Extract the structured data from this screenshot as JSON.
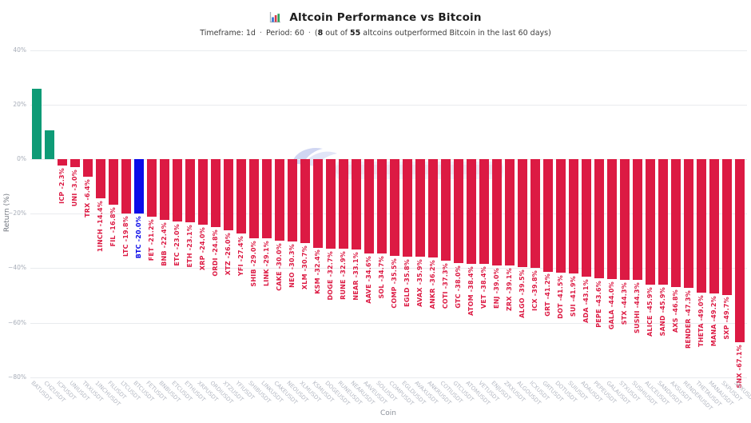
{
  "header": {
    "title": "Altcoin Performance vs Bitcoin",
    "icon": "bar-chart-icon",
    "subtitle": {
      "timeframe": "Timeframe: 1d",
      "separator": "·",
      "period": "Period: 60",
      "stat_open": "(",
      "stat_count": "8",
      "stat_mid": " out of ",
      "stat_total": "55",
      "stat_rest": " altcoins outperformed Bitcoin in the last 60 days)"
    }
  },
  "colors": {
    "green": "#0E9B76",
    "red": "#DC1A43",
    "blue": "#0B0BE8",
    "grid": "#E9EBEE",
    "ytick": "#A7ADB8",
    "xtick": "#B5B9C3",
    "watermark": "#AAB4E8"
  },
  "chart_data": {
    "type": "bar",
    "title": "Altcoin Performance vs Bitcoin",
    "xlabel": "Coin",
    "ylabel": "Return (%)",
    "ylim": [
      -80,
      40
    ],
    "grid": true,
    "legend_position": "none",
    "yticks": [
      {
        "value": 40,
        "label": "40%"
      },
      {
        "value": 20,
        "label": "20%"
      },
      {
        "value": 0,
        "label": "0%"
      },
      {
        "value": -20,
        "label": "−20%"
      },
      {
        "value": -40,
        "label": "−40%"
      },
      {
        "value": -60,
        "label": "−60%"
      },
      {
        "value": -80,
        "label": "−80%"
      }
    ],
    "bars": [
      {
        "symbol": "BAT",
        "tick": "BATUSDT",
        "value": 25.9,
        "label": "BAT 25.9%",
        "color": "green"
      },
      {
        "symbol": "CHZ",
        "tick": "CHZUSDT",
        "value": 10.5,
        "label": "CHZ 10.5%",
        "color": "green"
      },
      {
        "symbol": "ICP",
        "tick": "ICPUSDT",
        "value": -2.3,
        "label": "ICP -2.3%",
        "color": "red"
      },
      {
        "symbol": "UNI",
        "tick": "UNIUSDT",
        "value": -3.0,
        "label": "UNI -3.0%",
        "color": "red"
      },
      {
        "symbol": "TRX",
        "tick": "TRXUSDT",
        "value": -6.4,
        "label": "TRX -6.4%",
        "color": "red"
      },
      {
        "symbol": "1INCH",
        "tick": "1INCHUSDT",
        "value": -14.4,
        "label": "1INCH -14.4%",
        "color": "red"
      },
      {
        "symbol": "FIL",
        "tick": "FILUSDT",
        "value": -16.8,
        "label": "FIL -16.8%",
        "color": "red"
      },
      {
        "symbol": "LTC",
        "tick": "LTCUSDT",
        "value": -19.8,
        "label": "LTC -19.8%",
        "color": "red"
      },
      {
        "symbol": "BTC",
        "tick": "BTCUSDT",
        "value": -20.0,
        "label": "BTC -20.0%",
        "color": "blue"
      },
      {
        "symbol": "FET",
        "tick": "FETUSDT",
        "value": -21.2,
        "label": "FET -21.2%",
        "color": "red"
      },
      {
        "symbol": "BNB",
        "tick": "BNBUSDT",
        "value": -22.4,
        "label": "BNB -22.4%",
        "color": "red"
      },
      {
        "symbol": "ETC",
        "tick": "ETCUSDT",
        "value": -23.0,
        "label": "ETC -23.0%",
        "color": "red"
      },
      {
        "symbol": "ETH",
        "tick": "ETHUSDT",
        "value": -23.1,
        "label": "ETH -23.1%",
        "color": "red"
      },
      {
        "symbol": "XRP",
        "tick": "XRPUSDT",
        "value": -24.0,
        "label": "XRP -24.0%",
        "color": "red"
      },
      {
        "symbol": "ORDI",
        "tick": "ORDIUSDT",
        "value": -24.8,
        "label": "ORDI -24.8%",
        "color": "red"
      },
      {
        "symbol": "XTZ",
        "tick": "XTZUSDT",
        "value": -26.0,
        "label": "XTZ -26.0%",
        "color": "red"
      },
      {
        "symbol": "YFI",
        "tick": "YFIUSDT",
        "value": -27.4,
        "label": "YFI -27.4%",
        "color": "red"
      },
      {
        "symbol": "SHIB",
        "tick": "SHIBUSDT",
        "value": -29.0,
        "label": "SHIB -29.0%",
        "color": "red"
      },
      {
        "symbol": "LINK",
        "tick": "LINKUSDT",
        "value": -29.1,
        "label": "LINK -29.1%",
        "color": "red"
      },
      {
        "symbol": "CAKE",
        "tick": "CAKEUSDT",
        "value": -30.0,
        "label": "CAKE -30.0%",
        "color": "red"
      },
      {
        "symbol": "NEO",
        "tick": "NEOUSDT",
        "value": -30.3,
        "label": "NEO -30.3%",
        "color": "red"
      },
      {
        "symbol": "XLM",
        "tick": "XLMUSDT",
        "value": -30.7,
        "label": "XLM -30.7%",
        "color": "red"
      },
      {
        "symbol": "KSM",
        "tick": "KSMUSDT",
        "value": -32.4,
        "label": "KSM -32.4%",
        "color": "red"
      },
      {
        "symbol": "DOGE",
        "tick": "DOGEUSDT",
        "value": -32.7,
        "label": "DOGE -32.7%",
        "color": "red"
      },
      {
        "symbol": "RUNE",
        "tick": "RUNEUSDT",
        "value": -32.9,
        "label": "RUNE -32.9%",
        "color": "red"
      },
      {
        "symbol": "NEAR",
        "tick": "NEARUSDT",
        "value": -33.1,
        "label": "NEAR -33.1%",
        "color": "red"
      },
      {
        "symbol": "AAVE",
        "tick": "AAVEUSDT",
        "value": -34.6,
        "label": "AAVE -34.6%",
        "color": "red"
      },
      {
        "symbol": "SOL",
        "tick": "SOLUSDT",
        "value": -34.7,
        "label": "SOL -34.7%",
        "color": "red"
      },
      {
        "symbol": "COMP",
        "tick": "COMPUSDT",
        "value": -35.5,
        "label": "COMP -35.5%",
        "color": "red"
      },
      {
        "symbol": "EGLD",
        "tick": "EGLDUSDT",
        "value": -35.8,
        "label": "EGLD -35.8%",
        "color": "red"
      },
      {
        "symbol": "AVAX",
        "tick": "AVAXUSDT",
        "value": -35.9,
        "label": "AVAX -35.9%",
        "color": "red"
      },
      {
        "symbol": "ANKR",
        "tick": "ANKRUSDT",
        "value": -36.2,
        "label": "ANKR -36.2%",
        "color": "red"
      },
      {
        "symbol": "COTI",
        "tick": "COTIUSDT",
        "value": -37.3,
        "label": "COTI -37.3%",
        "color": "red"
      },
      {
        "symbol": "GTC",
        "tick": "GTCUSDT",
        "value": -38.0,
        "label": "GTC -38.0%",
        "color": "red"
      },
      {
        "symbol": "ATOM",
        "tick": "ATOMUSDT",
        "value": -38.4,
        "label": "ATOM -38.4%",
        "color": "red"
      },
      {
        "symbol": "VET",
        "tick": "VETUSDT",
        "value": -38.4,
        "label": "VET -38.4%",
        "color": "red"
      },
      {
        "symbol": "ENJ",
        "tick": "ENJUSDT",
        "value": -39.0,
        "label": "ENJ -39.0%",
        "color": "red"
      },
      {
        "symbol": "ZRX",
        "tick": "ZRXUSDT",
        "value": -39.1,
        "label": "ZRX -39.1%",
        "color": "red"
      },
      {
        "symbol": "ALGO",
        "tick": "ALGOUSDT",
        "value": -39.5,
        "label": "ALGO -39.5%",
        "color": "red"
      },
      {
        "symbol": "ICX",
        "tick": "ICXUSDT",
        "value": -39.8,
        "label": "ICX -39.8%",
        "color": "red"
      },
      {
        "symbol": "GRT",
        "tick": "GRTUSDT",
        "value": -41.2,
        "label": "GRT -41.2%",
        "color": "red"
      },
      {
        "symbol": "DOT",
        "tick": "DOTUSDT",
        "value": -41.5,
        "label": "DOT -41.5%",
        "color": "red"
      },
      {
        "symbol": "SUI",
        "tick": "SUIUSDT",
        "value": -41.9,
        "label": "SUI -41.9%",
        "color": "red"
      },
      {
        "symbol": "ADA",
        "tick": "ADAUSDT",
        "value": -43.1,
        "label": "ADA -43.1%",
        "color": "red"
      },
      {
        "symbol": "PEPE",
        "tick": "PEPEUSDT",
        "value": -43.6,
        "label": "PEPE -43.6%",
        "color": "red"
      },
      {
        "symbol": "GALA",
        "tick": "GALAUSDT",
        "value": -44.0,
        "label": "GALA -44.0%",
        "color": "red"
      },
      {
        "symbol": "STX",
        "tick": "STXUSDT",
        "value": -44.3,
        "label": "STX -44.3%",
        "color": "red"
      },
      {
        "symbol": "SUSHI",
        "tick": "SUSHIUSDT",
        "value": -44.3,
        "label": "SUSHI -44.3%",
        "color": "red"
      },
      {
        "symbol": "ALICE",
        "tick": "ALICEUSDT",
        "value": -45.9,
        "label": "ALICE -45.9%",
        "color": "red"
      },
      {
        "symbol": "SAND",
        "tick": "SANDUSDT",
        "value": -45.9,
        "label": "SAND -45.9%",
        "color": "red"
      },
      {
        "symbol": "AXS",
        "tick": "AXSUSDT",
        "value": -46.8,
        "label": "AXS -46.8%",
        "color": "red"
      },
      {
        "symbol": "RENDER",
        "tick": "RENDERUSDT",
        "value": -47.3,
        "label": "RENDER -47.3%",
        "color": "red"
      },
      {
        "symbol": "THETA",
        "tick": "THETAUSDT",
        "value": -49.0,
        "label": "THETA -49.0%",
        "color": "red"
      },
      {
        "symbol": "MANA",
        "tick": "MANAUSDT",
        "value": -49.2,
        "label": "MANA -49.2%",
        "color": "red"
      },
      {
        "symbol": "SXP",
        "tick": "SXPUSDT",
        "value": -49.7,
        "label": "SXP -49.7%",
        "color": "red"
      },
      {
        "symbol": "SNX",
        "tick": "SNXUSDT",
        "value": -67.1,
        "label": "SNX -67.1%",
        "color": "red"
      }
    ]
  }
}
